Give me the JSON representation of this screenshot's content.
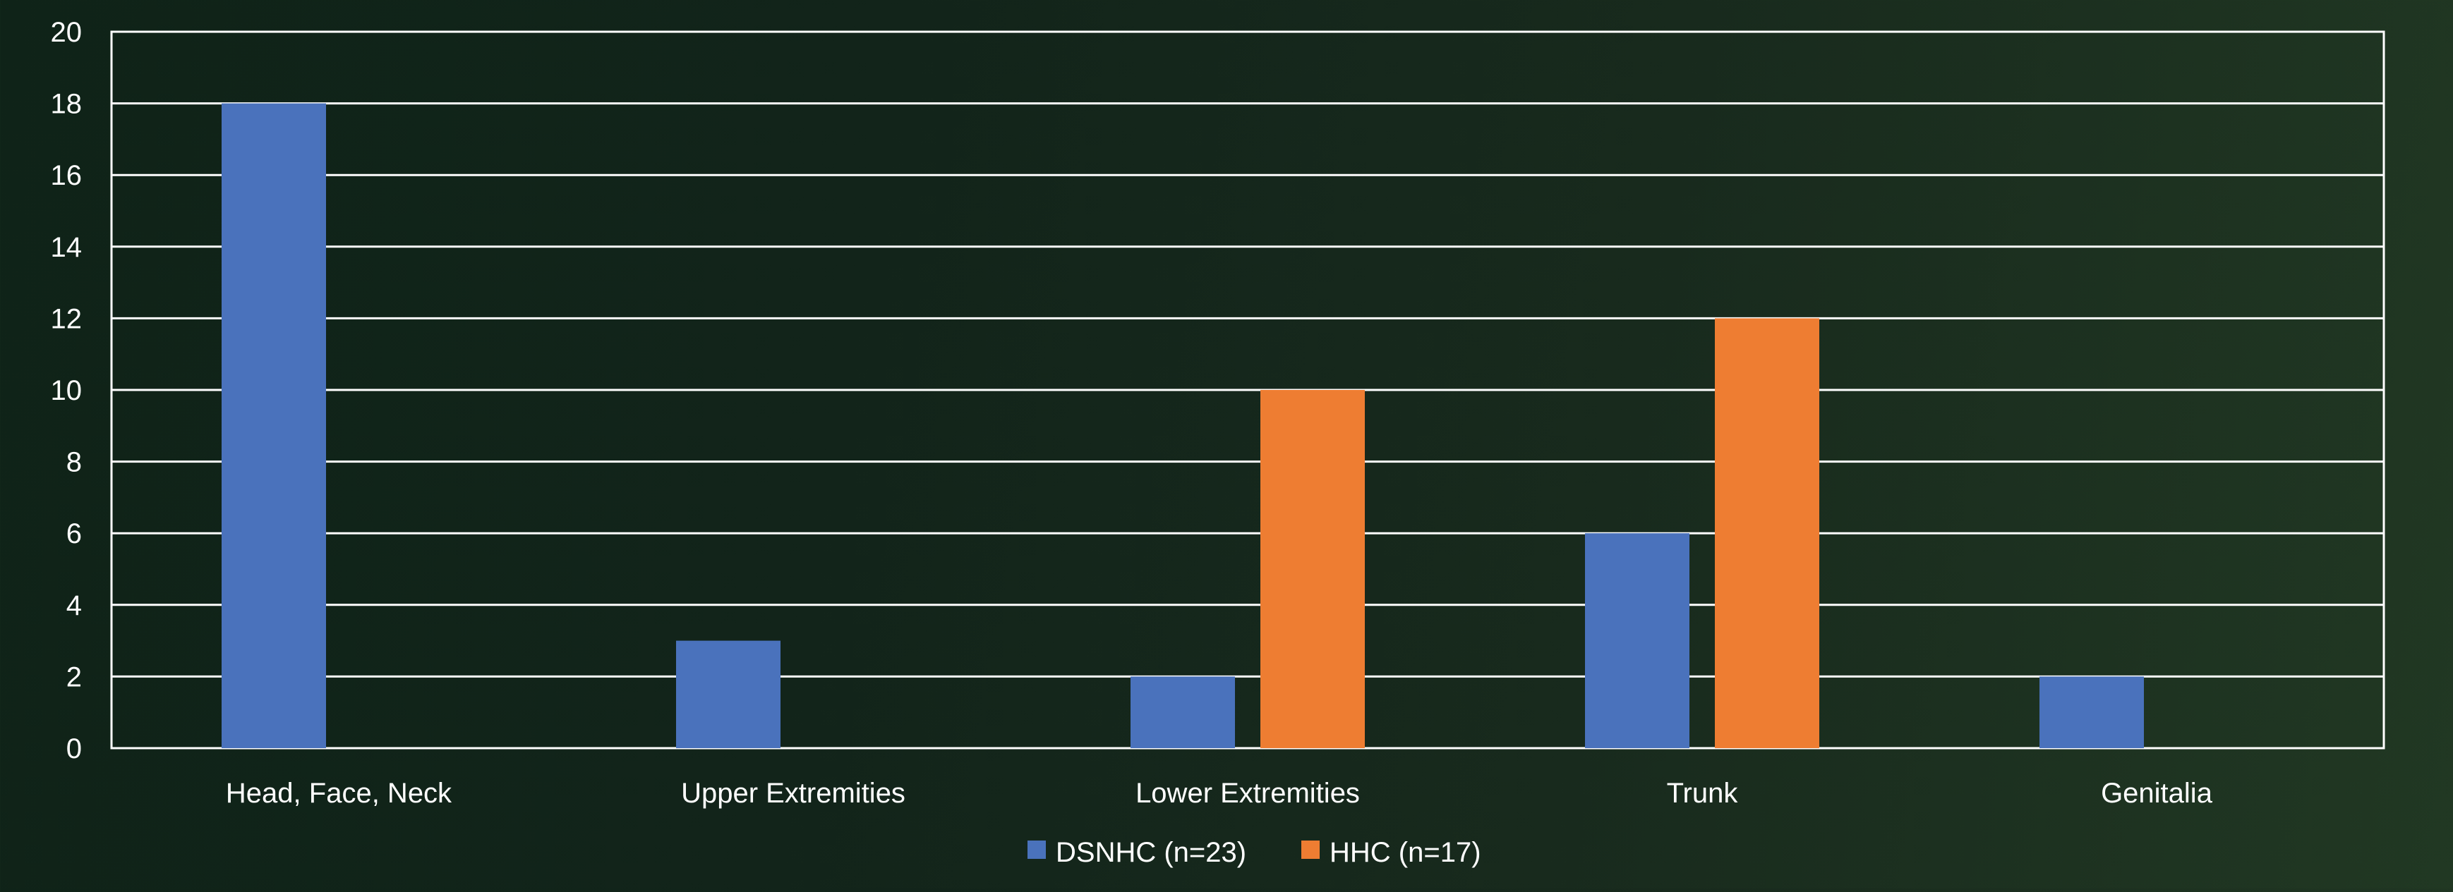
{
  "chart_data": {
    "type": "bar",
    "title": "",
    "xlabel": "",
    "ylabel": "",
    "categories": [
      "Head, Face, Neck",
      "Upper Extremities",
      "Lower Extremities",
      "Trunk",
      "Genitalia"
    ],
    "series": [
      {
        "name": "DSNHC (n=23)",
        "color": "#4a72bc",
        "values": [
          18,
          3,
          2,
          6,
          2
        ]
      },
      {
        "name": "HHC (n=17)",
        "color": "#ee7d32",
        "values": [
          0,
          0,
          10,
          12,
          0
        ]
      }
    ],
    "ylim": [
      0,
      20
    ],
    "yticks": [
      0,
      2,
      4,
      6,
      8,
      10,
      12,
      14,
      16,
      18,
      20
    ],
    "grid": true,
    "legend_position": "bottom-center"
  }
}
